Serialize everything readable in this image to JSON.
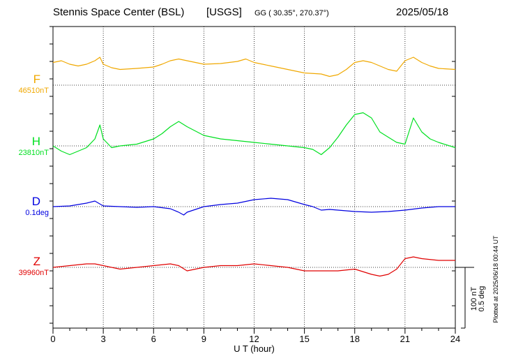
{
  "header": {
    "station": "Stennis Space Center (BSL)",
    "network": "[USGS]",
    "coords": "GG ( 30.35°, 270.37°)",
    "date": "2025/05/18"
  },
  "plotted_note": "Plotted at 2025/06/18 00:44 UT",
  "scale": {
    "field": "100 nT",
    "angle": "0.5 deg"
  },
  "colors": {
    "F": "#f0a800",
    "H": "#00e020",
    "D": "#0000e0",
    "Z": "#e00000"
  },
  "chart_data": {
    "type": "line",
    "title": "Stennis Space Center (BSL)  [USGS]",
    "xlabel": "U T (hour)",
    "ylabel": "",
    "xlim": [
      0,
      24
    ],
    "x_ticks": [
      "0",
      "3",
      "6",
      "9",
      "12",
      "15",
      "18",
      "21",
      "24"
    ],
    "grid": true,
    "series": [
      {
        "name": "F",
        "baseline": "46510nT",
        "unit": "nT",
        "x": [
          0,
          0.5,
          1,
          1.5,
          2,
          2.5,
          2.8,
          3,
          3.5,
          4,
          5,
          6,
          6.5,
          7,
          7.5,
          8,
          9,
          10,
          11,
          11.5,
          12,
          13,
          14,
          15,
          16,
          16.5,
          17,
          17.5,
          18,
          18.5,
          19,
          20,
          20.5,
          21,
          21.5,
          22,
          22.5,
          23,
          24
        ],
        "values": [
          65,
          70,
          60,
          55,
          60,
          70,
          80,
          60,
          50,
          45,
          48,
          52,
          60,
          70,
          75,
          70,
          60,
          62,
          68,
          75,
          65,
          55,
          45,
          35,
          32,
          25,
          30,
          45,
          65,
          70,
          65,
          45,
          40,
          70,
          80,
          65,
          55,
          48,
          45
        ]
      },
      {
        "name": "H",
        "baseline": "23810nT",
        "unit": "nT",
        "x": [
          0,
          0.5,
          1,
          1.5,
          2,
          2.5,
          2.8,
          3,
          3.5,
          4,
          5,
          6,
          6.5,
          7,
          7.5,
          8,
          9,
          10,
          11,
          12,
          13,
          14,
          15,
          15.5,
          16,
          16.5,
          17,
          17.5,
          18,
          18.5,
          19,
          19.5,
          20,
          20.5,
          21,
          21.5,
          22,
          22.5,
          23,
          24
        ],
        "values": [
          0,
          -15,
          -25,
          -15,
          -5,
          20,
          60,
          20,
          -5,
          0,
          5,
          20,
          35,
          55,
          70,
          55,
          30,
          20,
          15,
          10,
          5,
          0,
          -5,
          -10,
          -25,
          -5,
          25,
          60,
          90,
          95,
          80,
          40,
          25,
          10,
          5,
          80,
          40,
          20,
          10,
          -5
        ]
      },
      {
        "name": "D",
        "baseline": "0.1deg",
        "unit": "deg",
        "x": [
          0,
          1,
          2,
          2.5,
          3,
          4,
          5,
          6,
          7,
          7.5,
          7.8,
          8,
          9,
          10,
          11,
          12,
          13,
          14,
          15,
          15.5,
          16,
          16.5,
          17,
          18,
          19,
          20,
          21,
          22,
          23,
          24
        ],
        "values": [
          0.0,
          0.01,
          0.05,
          0.08,
          0.01,
          0.0,
          -0.01,
          0.0,
          -0.03,
          -0.08,
          -0.12,
          -0.08,
          0.0,
          0.03,
          0.05,
          0.1,
          0.12,
          0.1,
          0.03,
          0.0,
          -0.05,
          -0.04,
          -0.05,
          -0.07,
          -0.08,
          -0.07,
          -0.05,
          -0.02,
          0.0,
          0.0
        ]
      },
      {
        "name": "Z",
        "baseline": "39960nT",
        "unit": "nT",
        "x": [
          0,
          1,
          2,
          2.5,
          3,
          4,
          5,
          6,
          7,
          7.5,
          8,
          9,
          10,
          11,
          12,
          13,
          14,
          15,
          16,
          17,
          18,
          19,
          19.5,
          20,
          20.5,
          21,
          21.5,
          22,
          23,
          24
        ],
        "values": [
          0,
          5,
          10,
          10,
          5,
          -5,
          0,
          5,
          10,
          5,
          -10,
          0,
          5,
          5,
          10,
          5,
          0,
          -10,
          -10,
          -10,
          -5,
          -20,
          -25,
          -20,
          -5,
          25,
          30,
          25,
          20,
          20
        ]
      }
    ]
  }
}
